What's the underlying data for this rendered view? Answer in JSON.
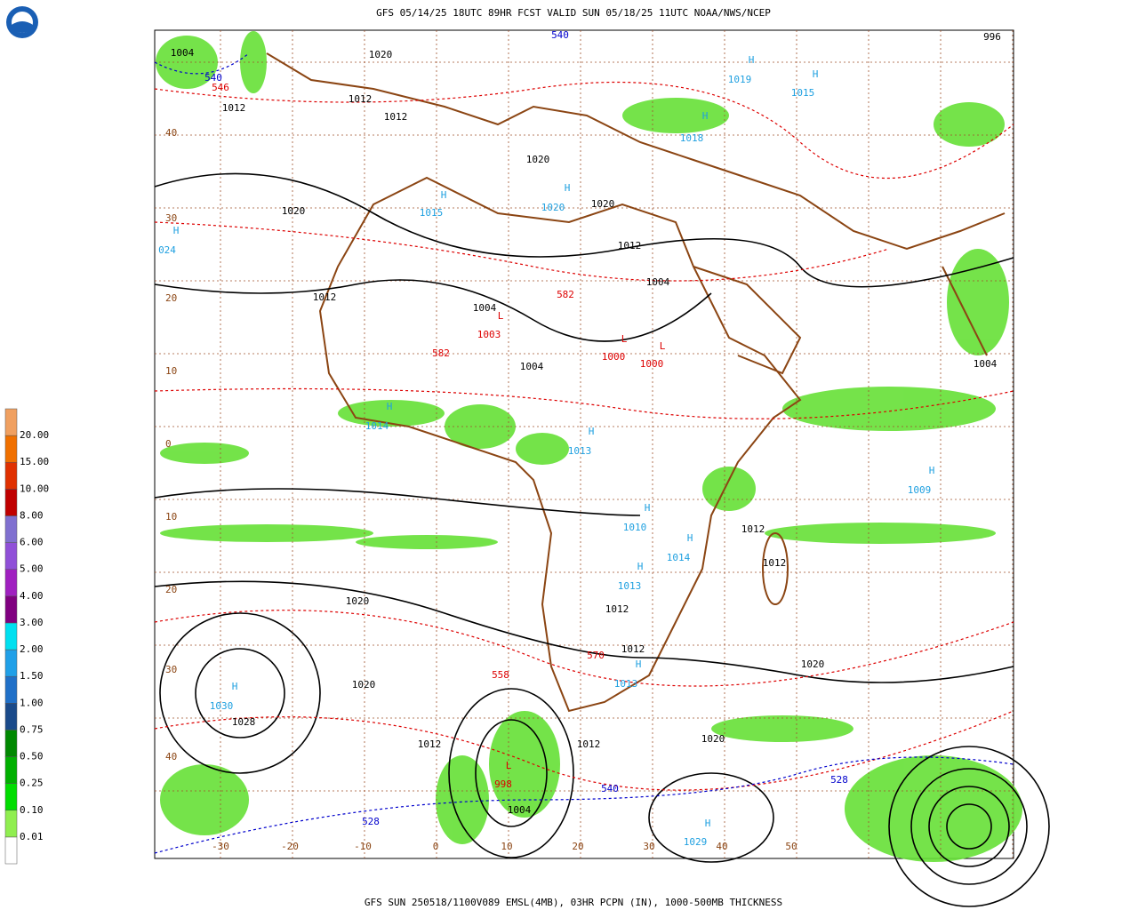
{
  "header": {
    "title": "GFS 05/14/25 18UTC 89HR FCST VALID SUN 05/18/25 11UTC NOAA/NWS/NCEP"
  },
  "footer": {
    "text": "GFS SUN 250518/1100V089 EMSL(4MB), 03HR PCPN (IN), 1000-500MB THICKNESS"
  },
  "legend": {
    "labels": [
      "0.01",
      "0.10",
      "0.25",
      "0.50",
      "0.75",
      "1.00",
      "1.50",
      "2.00",
      "3.00",
      "4.00",
      "5.00",
      "6.00",
      "8.00",
      "10.00",
      "15.00",
      "20.00"
    ]
  },
  "map": {
    "lat_labels": [
      "40",
      "30",
      "20",
      "10",
      "0",
      "10",
      "20",
      "30",
      "40"
    ],
    "lon_labels": [
      "-30",
      "-20",
      "-10",
      "0",
      "10",
      "20",
      "30",
      "40",
      "50"
    ],
    "labels": [
      "1020",
      "1004",
      "1012",
      "1012",
      "1012",
      "1020",
      "1020",
      "1020",
      "1012",
      "1004",
      "1004",
      "1004",
      "1012",
      "L",
      "L",
      "L",
      "1003",
      "1000",
      "1000",
      "H",
      "1015",
      "H",
      "1020",
      "H",
      "024",
      "H",
      "1014",
      "H",
      "1013",
      "H",
      "1010",
      "H",
      "1014",
      "H",
      "1013",
      "H",
      "1013",
      "H",
      "1030",
      "1028",
      "H",
      "1009",
      "H",
      "1029",
      "L",
      "998",
      "1004",
      "1020",
      "1020",
      "1012",
      "1012",
      "1020",
      "1020",
      "1012",
      "1012",
      "1012",
      "1012",
      "540",
      "540",
      "528",
      "540",
      "528",
      "570",
      "558",
      "546",
      "582",
      "582",
      "996",
      "1004",
      "H",
      "1019",
      "H",
      "1015",
      "H",
      "1018"
    ]
  }
}
